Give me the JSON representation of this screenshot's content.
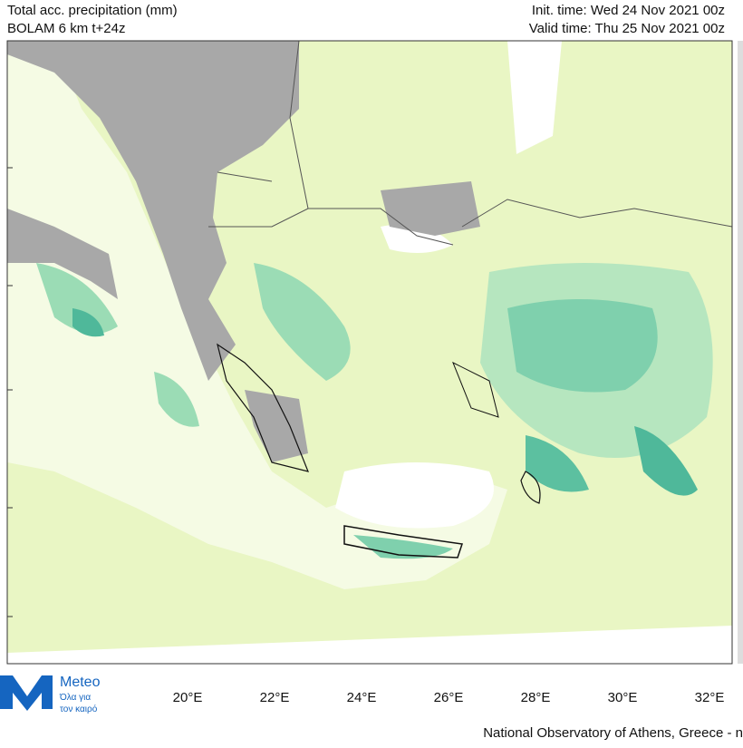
{
  "header": {
    "title": "Total acc. precipitation (mm)",
    "subtitle": "BOLAM 6 km t+24z",
    "init_time": "Init. time: Wed 24 Nov 2021 00z",
    "valid_time": "Valid time: Thu 25 Nov 2021 00z"
  },
  "map": {
    "longitude_labels": [
      "20°E",
      "22°E",
      "24°E",
      "26°E",
      "28°E",
      "30°E",
      "32°E"
    ]
  },
  "logo": {
    "name": "Meteo",
    "tagline_1": "Όλα για",
    "tagline_2": "τον καιρό"
  },
  "footer": "National Observatory of Athens, Greece - n"
}
